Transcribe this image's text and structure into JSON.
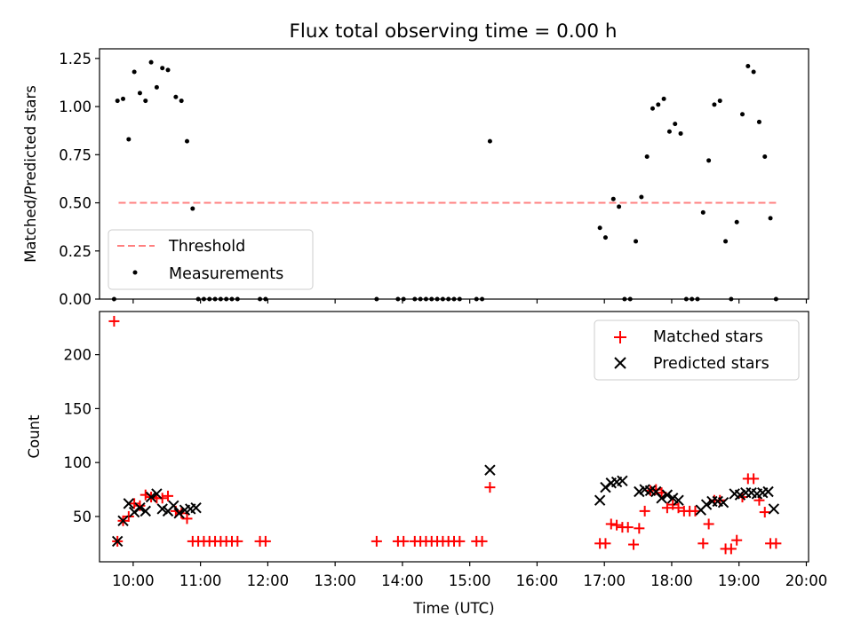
{
  "figure": {
    "title": "Flux total observing time = 0.00 h"
  },
  "colors": {
    "threshold": "#ff8080",
    "measurement": "#000000",
    "matched": "#ff0000",
    "predicted": "#000000"
  },
  "chart_data": [
    {
      "type": "scatter",
      "ylabel": "Matched/Predicted stars",
      "xlabel": "",
      "ylim": [
        0,
        1.3
      ],
      "y_ticks": [
        "0.00",
        "0.25",
        "0.50",
        "0.75",
        "1.00",
        "1.25"
      ],
      "legend": {
        "placement": "lower-left",
        "entries": [
          "Threshold",
          "Measurements"
        ]
      },
      "threshold": {
        "name": "Threshold",
        "value": 0.5,
        "x_start": "09:47",
        "x_end": "19:33"
      },
      "series": [
        {
          "name": "Measurements",
          "points": [
            [
              "09:43",
              0
            ],
            [
              "09:46",
              1.03
            ],
            [
              "09:51",
              1.04
            ],
            [
              "09:56",
              0.83
            ],
            [
              "10:01",
              1.18
            ],
            [
              "10:06",
              1.07
            ],
            [
              "10:11",
              1.03
            ],
            [
              "10:16",
              1.23
            ],
            [
              "10:21",
              1.1
            ],
            [
              "10:26",
              1.2
            ],
            [
              "10:31",
              1.19
            ],
            [
              "10:38",
              1.05
            ],
            [
              "10:43",
              1.03
            ],
            [
              "10:48",
              0.82
            ],
            [
              "10:53",
              0.47
            ],
            [
              "10:58",
              0
            ],
            [
              "11:03",
              0
            ],
            [
              "11:08",
              0
            ],
            [
              "11:13",
              0
            ],
            [
              "11:18",
              0
            ],
            [
              "11:23",
              0
            ],
            [
              "11:28",
              0
            ],
            [
              "11:33",
              0
            ],
            [
              "11:53",
              0
            ],
            [
              "11:58",
              0
            ],
            [
              "13:37",
              0
            ],
            [
              "13:56",
              0
            ],
            [
              "14:01",
              0
            ],
            [
              "14:11",
              0
            ],
            [
              "14:16",
              0
            ],
            [
              "14:21",
              0
            ],
            [
              "14:26",
              0
            ],
            [
              "14:31",
              0
            ],
            [
              "14:36",
              0
            ],
            [
              "14:41",
              0
            ],
            [
              "14:46",
              0
            ],
            [
              "14:51",
              0
            ],
            [
              "15:06",
              0
            ],
            [
              "15:11",
              0
            ],
            [
              "15:18",
              0.82
            ],
            [
              "16:56",
              0.37
            ],
            [
              "17:01",
              0.32
            ],
            [
              "17:08",
              0.52
            ],
            [
              "17:13",
              0.48
            ],
            [
              "17:18",
              0
            ],
            [
              "17:23",
              0
            ],
            [
              "17:28",
              0.3
            ],
            [
              "17:33",
              0.53
            ],
            [
              "17:38",
              0.74
            ],
            [
              "17:43",
              0.99
            ],
            [
              "17:48",
              1.01
            ],
            [
              "17:53",
              1.04
            ],
            [
              "17:58",
              0.87
            ],
            [
              "18:03",
              0.91
            ],
            [
              "18:08",
              0.86
            ],
            [
              "18:13",
              0
            ],
            [
              "18:18",
              0
            ],
            [
              "18:23",
              0
            ],
            [
              "18:28",
              0.45
            ],
            [
              "18:33",
              0.72
            ],
            [
              "18:38",
              1.01
            ],
            [
              "18:43",
              1.03
            ],
            [
              "18:48",
              0.3
            ],
            [
              "18:53",
              0
            ],
            [
              "18:58",
              0.4
            ],
            [
              "19:03",
              0.96
            ],
            [
              "19:08",
              1.21
            ],
            [
              "19:13",
              1.18
            ],
            [
              "19:18",
              0.92
            ],
            [
              "19:23",
              0.74
            ],
            [
              "19:28",
              0.42
            ],
            [
              "19:33",
              0
            ]
          ]
        }
      ]
    },
    {
      "type": "scatter",
      "ylabel": "Count",
      "xlabel": "Time (UTC)",
      "ylim": [
        8,
        240
      ],
      "y_ticks": [
        "50",
        "100",
        "150",
        "200"
      ],
      "x_range": [
        "09:30",
        "20:02"
      ],
      "x_ticks": [
        "10:00",
        "11:00",
        "12:00",
        "13:00",
        "14:00",
        "15:00",
        "16:00",
        "17:00",
        "18:00",
        "19:00",
        "20:00"
      ],
      "legend": {
        "placement": "top-right",
        "entries": [
          "Matched stars",
          "Predicted stars"
        ]
      },
      "series": [
        {
          "name": "Matched stars",
          "marker": "+",
          "points": [
            [
              "09:43",
              231
            ],
            [
              "09:46",
              27
            ],
            [
              "09:51",
              46
            ],
            [
              "09:56",
              50
            ],
            [
              "10:01",
              62
            ],
            [
              "10:06",
              60
            ],
            [
              "10:11",
              70
            ],
            [
              "10:16",
              68
            ],
            [
              "10:21",
              67
            ],
            [
              "10:26",
              67
            ],
            [
              "10:31",
              69
            ],
            [
              "10:38",
              55
            ],
            [
              "10:43",
              53
            ],
            [
              "10:48",
              48
            ],
            [
              "10:53",
              27
            ],
            [
              "10:58",
              27
            ],
            [
              "11:03",
              27
            ],
            [
              "11:08",
              27
            ],
            [
              "11:13",
              27
            ],
            [
              "11:18",
              27
            ],
            [
              "11:23",
              27
            ],
            [
              "11:28",
              27
            ],
            [
              "11:33",
              27
            ],
            [
              "11:53",
              27
            ],
            [
              "11:58",
              27
            ],
            [
              "13:37",
              27
            ],
            [
              "13:56",
              27
            ],
            [
              "14:01",
              27
            ],
            [
              "14:11",
              27
            ],
            [
              "14:16",
              27
            ],
            [
              "14:21",
              27
            ],
            [
              "14:26",
              27
            ],
            [
              "14:31",
              27
            ],
            [
              "14:36",
              27
            ],
            [
              "14:41",
              27
            ],
            [
              "14:46",
              27
            ],
            [
              "14:51",
              27
            ],
            [
              "15:06",
              27
            ],
            [
              "15:11",
              27
            ],
            [
              "15:18",
              77
            ],
            [
              "16:56",
              25
            ],
            [
              "17:01",
              25
            ],
            [
              "17:06",
              43
            ],
            [
              "17:11",
              42
            ],
            [
              "17:16",
              40
            ],
            [
              "17:21",
              40
            ],
            [
              "17:26",
              24
            ],
            [
              "17:31",
              39
            ],
            [
              "17:36",
              55
            ],
            [
              "17:41",
              74
            ],
            [
              "17:46",
              75
            ],
            [
              "17:51",
              72
            ],
            [
              "17:56",
              58
            ],
            [
              "18:01",
              61
            ],
            [
              "18:06",
              58
            ],
            [
              "18:11",
              55
            ],
            [
              "18:16",
              55
            ],
            [
              "18:21",
              55
            ],
            [
              "18:28",
              25
            ],
            [
              "18:33",
              43
            ],
            [
              "18:38",
              65
            ],
            [
              "18:43",
              65
            ],
            [
              "18:48",
              20
            ],
            [
              "18:53",
              20
            ],
            [
              "18:58",
              28
            ],
            [
              "19:03",
              68
            ],
            [
              "19:08",
              85
            ],
            [
              "19:13",
              85
            ],
            [
              "19:18",
              65
            ],
            [
              "19:23",
              54
            ],
            [
              "19:28",
              25
            ],
            [
              "19:33",
              25
            ]
          ]
        },
        {
          "name": "Predicted stars",
          "marker": "x",
          "points": [
            [
              "09:46",
              27
            ],
            [
              "09:51",
              46
            ],
            [
              "09:56",
              62
            ],
            [
              "10:01",
              54
            ],
            [
              "10:06",
              58
            ],
            [
              "10:11",
              55
            ],
            [
              "10:16",
              68
            ],
            [
              "10:21",
              71
            ],
            [
              "10:26",
              57
            ],
            [
              "10:31",
              55
            ],
            [
              "10:36",
              60
            ],
            [
              "10:41",
              53
            ],
            [
              "10:46",
              56
            ],
            [
              "10:51",
              57
            ],
            [
              "10:56",
              58
            ],
            [
              "15:18",
              93
            ],
            [
              "16:56",
              65
            ],
            [
              "17:01",
              77
            ],
            [
              "17:06",
              81
            ],
            [
              "17:11",
              82
            ],
            [
              "17:16",
              83
            ],
            [
              "17:31",
              73
            ],
            [
              "17:36",
              75
            ],
            [
              "17:41",
              74
            ],
            [
              "17:46",
              73
            ],
            [
              "17:51",
              67
            ],
            [
              "17:56",
              70
            ],
            [
              "18:01",
              67
            ],
            [
              "18:06",
              65
            ],
            [
              "18:26",
              56
            ],
            [
              "18:31",
              61
            ],
            [
              "18:36",
              64
            ],
            [
              "18:41",
              64
            ],
            [
              "18:46",
              63
            ],
            [
              "18:56",
              71
            ],
            [
              "19:01",
              70
            ],
            [
              "19:06",
              72
            ],
            [
              "19:11",
              72
            ],
            [
              "19:16",
              71
            ],
            [
              "19:21",
              72
            ],
            [
              "19:26",
              73
            ],
            [
              "19:31",
              57
            ]
          ]
        }
      ]
    }
  ]
}
